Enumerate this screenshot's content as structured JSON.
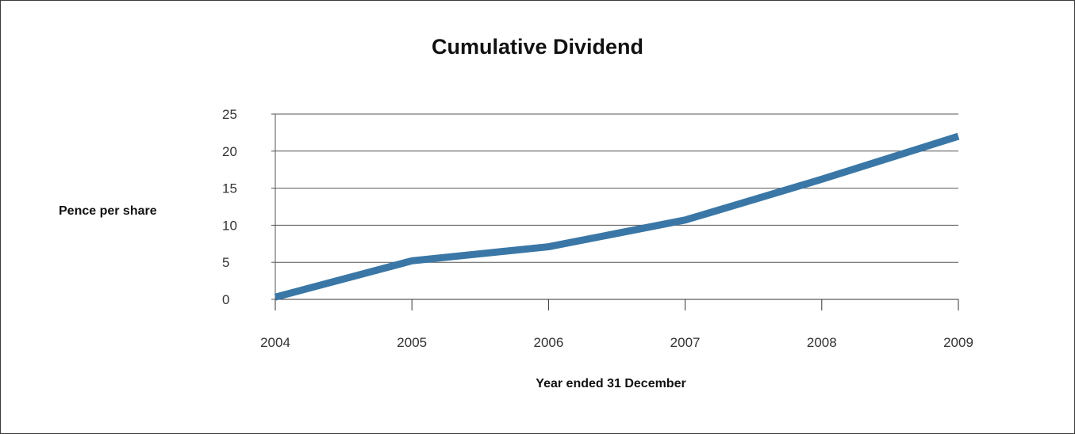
{
  "chart_data": {
    "type": "line",
    "title": "Cumulative Dividend",
    "xlabel": "Year ended 31 December",
    "ylabel": "Pence per share",
    "categories": [
      "2004",
      "2005",
      "2006",
      "2007",
      "2008",
      "2009"
    ],
    "series": [
      {
        "values": [
          0.3,
          5.2,
          7.1,
          10.7,
          16.2,
          22.0
        ]
      }
    ],
    "ylim": [
      0,
      25
    ],
    "yticks": [
      0,
      5,
      10,
      15,
      20,
      25
    ],
    "grid": true,
    "colors": {
      "line": "#3a77a6",
      "grid": "#555555",
      "axis": "#333333"
    }
  }
}
